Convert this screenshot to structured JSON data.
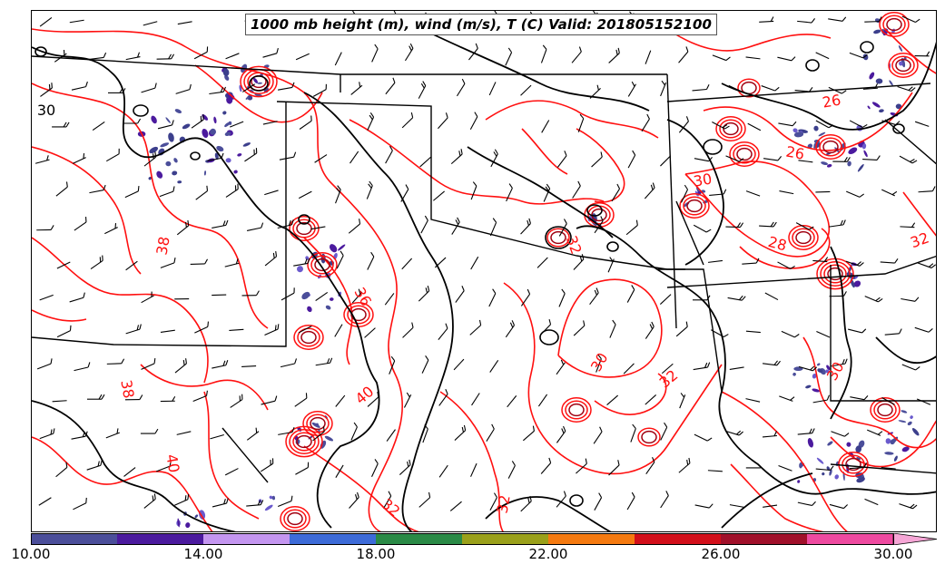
{
  "title": "1000 mb height (m), wind (m/s), T (C) Valid: 201805152100",
  "colorbar": {
    "ticks": [
      "10.00",
      "14.00",
      "18.00",
      "22.00",
      "26.00",
      "30.00"
    ],
    "colors": [
      "#4b4e9a",
      "#4b1a9e",
      "#c496f0",
      "#3d6bd8",
      "#2a8a46",
      "#9aa01a",
      "#f57a10",
      "#d20f1a",
      "#a0102a",
      "#ee4aa0",
      "#f6a6d6"
    ]
  },
  "contours": {
    "height_color": "#000000",
    "temperature_color": "#ff0000",
    "wind_barb_color": "#000000",
    "temperature_labels": [
      "30",
      "32",
      "26",
      "28",
      "36",
      "40",
      "38",
      "30",
      "32",
      "30",
      "32",
      "26",
      "32",
      "32",
      "38",
      "40"
    ],
    "height_labels": [
      "30"
    ]
  }
}
